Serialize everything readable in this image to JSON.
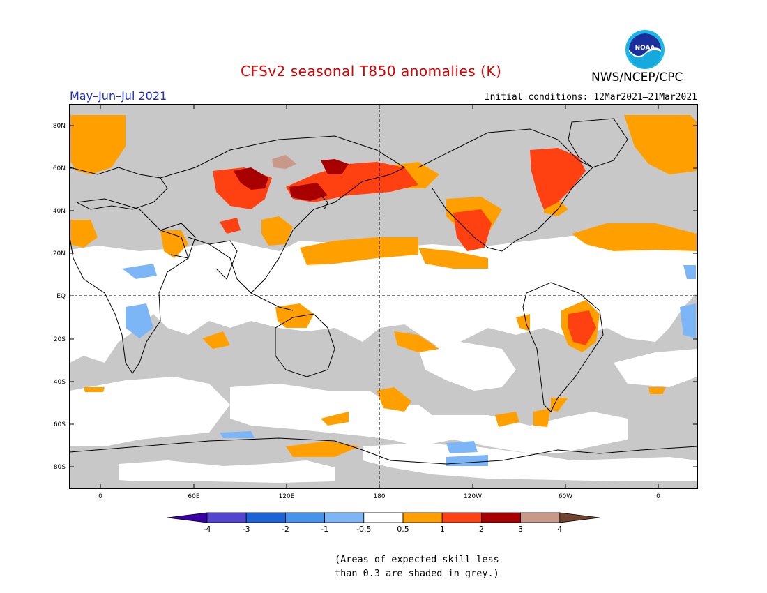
{
  "title": "CFSv2 seasonal T850 anomalies (K)",
  "period": "May–Jun–Jul 2021",
  "initial_conditions": "Initial conditions: 12Mar2021–21Mar2021",
  "agency": "NWS/NCEP/CPC",
  "logo_text": "NOAA",
  "lat_labels": [
    "80N",
    "60N",
    "40N",
    "20N",
    "EQ",
    "20S",
    "40S",
    "60S",
    "80S"
  ],
  "lon_labels": [
    "0",
    "60E",
    "120E",
    "180",
    "120W",
    "60W",
    "0"
  ],
  "colorbar": {
    "labels": [
      "-4",
      "-3",
      "-2",
      "-1",
      "-0.5",
      "0.5",
      "1",
      "2",
      "3",
      "4"
    ],
    "colors": [
      "#3a00a8",
      "#5245d0",
      "#1a64d8",
      "#4494ec",
      "#7cb6f6",
      "#ffffff",
      "#ffa000",
      "#ff4010",
      "#a80000",
      "#c89888",
      "#70442e"
    ]
  },
  "legend_note_line1": "(Areas of expected skill less",
  "legend_note_line2": "than 0.3 are shaded in grey.)",
  "colors": {
    "grey_mask": "#c8c8c8",
    "title_red": "#dd0000",
    "period_blue": "#1a2cd0"
  }
}
